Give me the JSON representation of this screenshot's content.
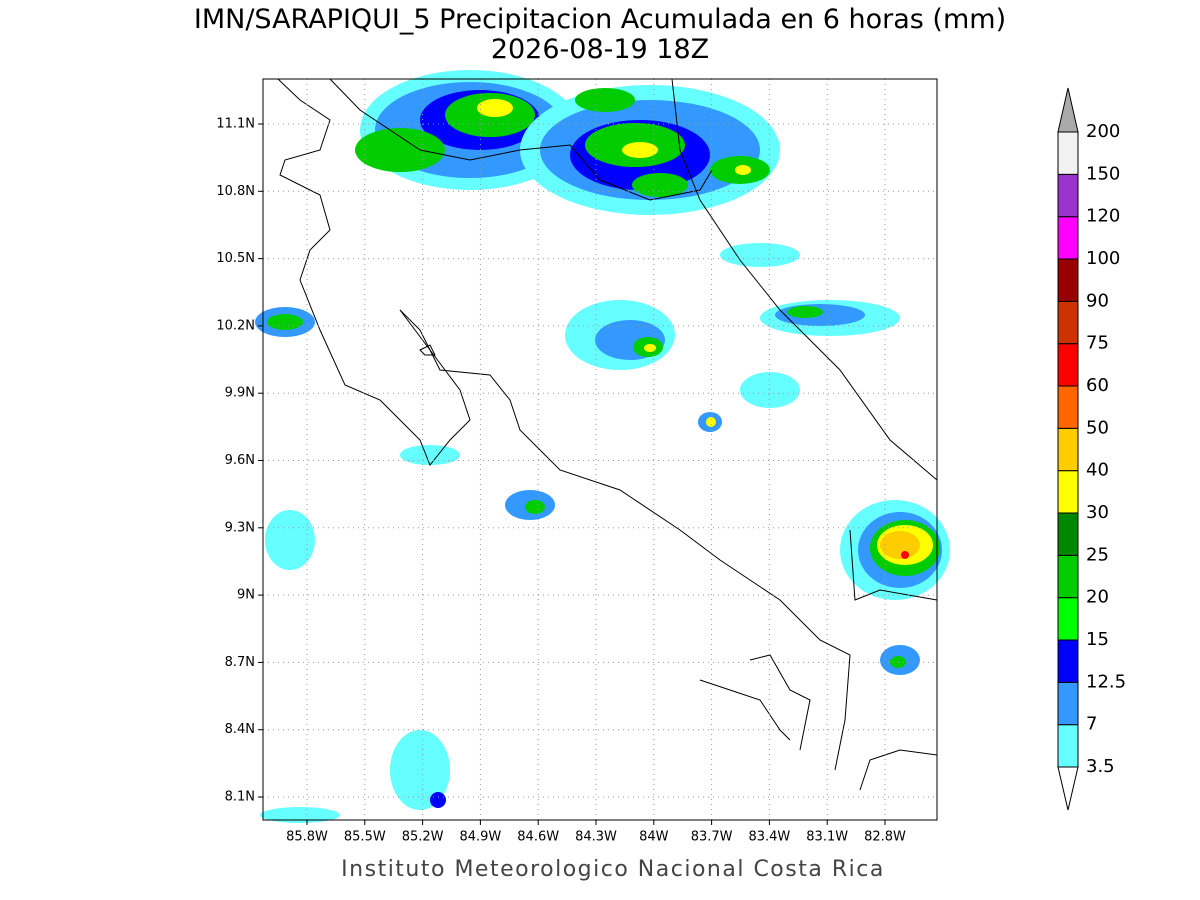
{
  "title": [
    "IMN/SARAPIQUI_5 Precipitacion Acumulada en 6 horas (mm)",
    "2026-08-19 18Z"
  ],
  "footer": "Instituto Meteorologico Nacional Costa Rica",
  "map": {
    "lon_ticks": [
      "85.8W",
      "85.5W",
      "85.2W",
      "84.9W",
      "84.6W",
      "84.3W",
      "84W",
      "83.7W",
      "83.4W",
      "83.1W",
      "82.8W"
    ],
    "lat_ticks": [
      "11.1N",
      "10.8N",
      "10.5N",
      "10.2N",
      "9.9N",
      "9.6N",
      "9.3N",
      "9N",
      "8.7N",
      "8.4N",
      "8.1N"
    ]
  },
  "colorbar": {
    "levels": [
      3.5,
      7,
      12.5,
      15,
      20,
      25,
      30,
      40,
      50,
      60,
      75,
      90,
      100,
      120,
      150,
      200
    ],
    "colors": [
      "#66ffff",
      "#3399ff",
      "#0000ff",
      "#00ff00",
      "#00cc00",
      "#008800",
      "#ffff00",
      "#ffcc00",
      "#ff6600",
      "#ff0000",
      "#cc3300",
      "#990000",
      "#ff00ff",
      "#9933cc",
      "#f2f2f2"
    ],
    "under_color": "#ffffff",
    "over_color": "#aaaaaa"
  }
}
